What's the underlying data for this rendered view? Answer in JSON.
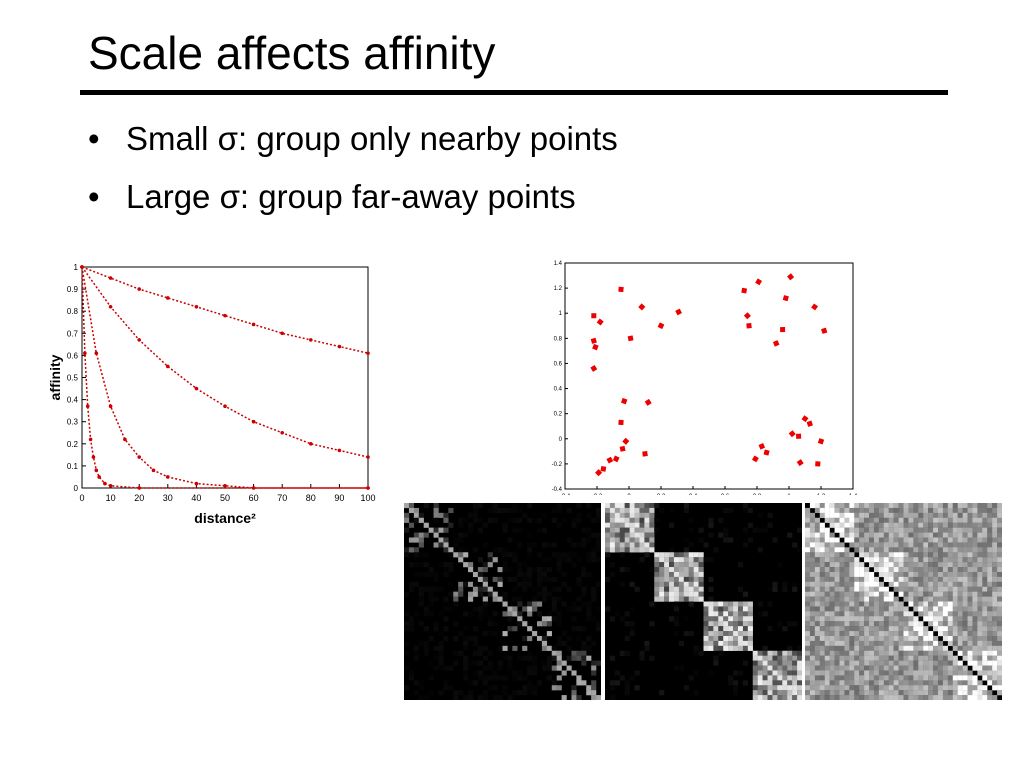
{
  "slide": {
    "title": "Scale affects affinity",
    "bullets": [
      "Small σ: group only nearby points",
      "Large σ: group far-away points"
    ]
  },
  "chart_data": [
    {
      "type": "line",
      "xlabel": "distance²",
      "ylabel": "affinity",
      "xlim": [
        0,
        100
      ],
      "ylim": [
        0,
        1
      ],
      "xticks": [
        "0",
        "10",
        "20",
        "30",
        "40",
        "50",
        "60",
        "70",
        "80",
        "90",
        "100"
      ],
      "yticks": [
        "0",
        "0.1",
        "0.2",
        "0.3",
        "0.4",
        "0.5",
        "0.6",
        "0.7",
        "0.8",
        "0.9",
        "1"
      ],
      "marker_color": "#cc0000",
      "series": [
        {
          "x": [
            0,
            10,
            20,
            30,
            40,
            50,
            60,
            70,
            80,
            90,
            100
          ],
          "y": [
            1,
            0.95,
            0.9,
            0.86,
            0.82,
            0.78,
            0.74,
            0.7,
            0.67,
            0.64,
            0.61
          ]
        },
        {
          "x": [
            0,
            10,
            20,
            30,
            40,
            50,
            60,
            70,
            80,
            90,
            100
          ],
          "y": [
            1,
            0.82,
            0.67,
            0.55,
            0.45,
            0.37,
            0.3,
            0.25,
            0.2,
            0.17,
            0.14
          ]
        },
        {
          "x": [
            0,
            5,
            10,
            15,
            20,
            25,
            30,
            40,
            50,
            60,
            100
          ],
          "y": [
            1,
            0.61,
            0.37,
            0.22,
            0.14,
            0.08,
            0.05,
            0.02,
            0.01,
            0.0,
            0.0
          ]
        },
        {
          "x": [
            0,
            1,
            2,
            3,
            4,
            5,
            6,
            8,
            10,
            20,
            100
          ],
          "y": [
            1,
            0.61,
            0.37,
            0.22,
            0.14,
            0.08,
            0.05,
            0.02,
            0.01,
            0.0,
            0.0
          ]
        }
      ]
    },
    {
      "type": "scatter",
      "xlim": [
        -0.4,
        1.4
      ],
      "ylim": [
        -0.4,
        1.4
      ],
      "xticks": [
        "-0.4",
        "-0.2",
        "0",
        "0.2",
        "0.4",
        "0.6",
        "0.8",
        "1",
        "1.2",
        "1.4"
      ],
      "yticks": [
        "-0.4",
        "-0.2",
        "0",
        "0.2",
        "0.4",
        "0.6",
        "0.8",
        "1",
        "1.2",
        "1.4"
      ],
      "marker_color": "#ee0000",
      "points": [
        [
          -0.22,
          0.98
        ],
        [
          -0.18,
          0.93
        ],
        [
          -0.22,
          0.78
        ],
        [
          -0.21,
          0.73
        ],
        [
          -0.22,
          0.56
        ],
        [
          -0.05,
          1.19
        ],
        [
          0.08,
          1.05
        ],
        [
          0.01,
          0.8
        ],
        [
          0.2,
          0.9
        ],
        [
          0.31,
          1.01
        ],
        [
          0.72,
          1.18
        ],
        [
          0.74,
          0.98
        ],
        [
          0.75,
          0.9
        ],
        [
          0.81,
          1.25
        ],
        [
          0.92,
          0.76
        ],
        [
          0.98,
          1.12
        ],
        [
          1.01,
          1.29
        ],
        [
          0.96,
          0.87
        ],
        [
          1.16,
          1.05
        ],
        [
          1.22,
          0.86
        ],
        [
          -0.03,
          0.3
        ],
        [
          0.12,
          0.29
        ],
        [
          -0.05,
          0.13
        ],
        [
          -0.02,
          -0.02
        ],
        [
          -0.04,
          -0.08
        ],
        [
          -0.08,
          -0.16
        ],
        [
          -0.12,
          -0.17
        ],
        [
          -0.16,
          -0.24
        ],
        [
          -0.19,
          -0.27
        ],
        [
          0.1,
          -0.12
        ],
        [
          0.79,
          -0.16
        ],
        [
          0.83,
          -0.06
        ],
        [
          0.86,
          -0.11
        ],
        [
          1.02,
          0.04
        ],
        [
          1.06,
          0.02
        ],
        [
          1.1,
          0.16
        ],
        [
          1.13,
          0.12
        ],
        [
          1.2,
          -0.02
        ],
        [
          1.07,
          -0.19
        ],
        [
          1.18,
          -0.2
        ]
      ]
    },
    {
      "type": "heatmap",
      "blocks": 4,
      "block_size": 10,
      "in_block_brightness": 0.35,
      "between_block_brightness": 0.0
    },
    {
      "type": "heatmap",
      "blocks": 4,
      "block_size": 10,
      "in_block_brightness": 0.6,
      "between_block_brightness": 0.05
    },
    {
      "type": "heatmap",
      "blocks": 4,
      "block_size": 10,
      "in_block_brightness": 0.85,
      "between_block_brightness": 0.6,
      "diagonal": "black"
    }
  ]
}
